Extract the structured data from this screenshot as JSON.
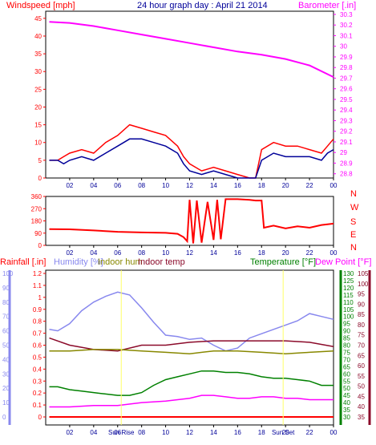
{
  "chart_data": [
    {
      "type": "line",
      "title": "24 hour graph day : April 21 2014",
      "left_label": "Windspeed [mph]",
      "right_label": "Barometer [.in]",
      "x_ticks": [
        "02",
        "04",
        "06",
        "08",
        "10",
        "12",
        "14",
        "16",
        "18",
        "20",
        "22",
        "00"
      ],
      "y_left_ticks": [
        "0",
        "5",
        "10",
        "15",
        "20",
        "25",
        "30",
        "35",
        "40",
        "45"
      ],
      "y_left_range": [
        0,
        47
      ],
      "y_right_ticks": [
        "28.8",
        "28.9",
        "29",
        "29.1",
        "29.2",
        "29.3",
        "29.4",
        "29.5",
        "29.6",
        "29.7",
        "29.8",
        "29.9",
        "30",
        "30.1",
        "30.2",
        "30.3"
      ],
      "y_right_range": [
        28.76,
        30.33
      ],
      "colors": {
        "gust": "#ff0000",
        "average": "#000099",
        "barometer": "#ff00ff"
      },
      "series": [
        {
          "name": "Barometer [.in]",
          "axis": "right",
          "color": "#ff00ff",
          "x": [
            0.3,
            2,
            4,
            6,
            8,
            10,
            12,
            14,
            16,
            18,
            20,
            22,
            24
          ],
          "y": [
            30.23,
            30.22,
            30.19,
            30.15,
            30.11,
            30.07,
            30.03,
            29.99,
            29.95,
            29.92,
            29.88,
            29.82,
            29.71
          ]
        },
        {
          "name": "Windspeed gust",
          "axis": "left",
          "color": "#ff0000",
          "x": [
            0.3,
            1,
            1.5,
            2,
            3,
            4,
            5,
            6,
            7,
            8,
            9,
            10,
            11,
            11.5,
            12,
            13,
            14,
            15,
            16,
            17,
            17.5,
            18,
            19,
            20,
            21,
            22,
            23,
            23.5,
            24
          ],
          "y": [
            5,
            5,
            6,
            7,
            8,
            7,
            10,
            12,
            15,
            14,
            13,
            12,
            9,
            6,
            4,
            2,
            3,
            2,
            1,
            0,
            0,
            8,
            10,
            9,
            9,
            8,
            7,
            9,
            11
          ]
        },
        {
          "name": "Windspeed average",
          "axis": "left",
          "color": "#000099",
          "x": [
            0.3,
            1,
            1.5,
            2,
            3,
            4,
            5,
            6,
            7,
            8,
            9,
            10,
            11,
            11.5,
            12,
            13,
            14,
            15,
            16,
            17,
            17.5,
            18,
            19,
            20,
            21,
            22,
            23,
            23.5,
            24
          ],
          "y": [
            5,
            5,
            4,
            5,
            6,
            5,
            7,
            9,
            11,
            11,
            10,
            9,
            7,
            4,
            2,
            1,
            2,
            1,
            0,
            0,
            0,
            5,
            7,
            6,
            6,
            6,
            5,
            7,
            8
          ]
        }
      ]
    },
    {
      "type": "line",
      "right_labels": [
        "N",
        "W",
        "S",
        "E",
        "N"
      ],
      "y_left_ticks": [
        "0",
        "90",
        "180",
        "270",
        "360"
      ],
      "y_range": [
        0,
        360
      ],
      "x_ticks": [
        "02",
        "04",
        "06",
        "08",
        "10",
        "12",
        "14",
        "16",
        "18",
        "20",
        "22",
        "00"
      ],
      "series": [
        {
          "name": "Wind direction",
          "color": "#ff0000",
          "x": [
            0.3,
            2,
            4,
            6,
            8,
            10,
            11,
            11.5,
            11.8,
            12,
            12.3,
            12.6,
            13,
            13.5,
            14,
            14.3,
            14.6,
            15,
            16,
            17,
            17.5,
            18,
            18.2,
            19,
            20,
            21,
            22,
            23,
            24
          ],
          "y": [
            120,
            118,
            110,
            100,
            95,
            92,
            85,
            60,
            30,
            335,
            15,
            330,
            20,
            320,
            40,
            335,
            45,
            340,
            340,
            335,
            330,
            330,
            130,
            145,
            125,
            140,
            130,
            150,
            160
          ]
        }
      ]
    },
    {
      "type": "line",
      "labels": [
        "Rainfall [.in]",
        "Humidity [%]",
        "Indoor hum",
        "Indoor temp",
        "Temperature [°F]",
        "Dew Point [°F]"
      ],
      "y_rain_ticks": [
        "0",
        "0.1",
        "0.2",
        "0.3",
        "0.4",
        "0.5",
        "0.6",
        "0.7",
        "0.8",
        "0.9",
        "1",
        "1.1",
        "1.2"
      ],
      "y_hum_ticks": [
        "0",
        "10",
        "20",
        "30",
        "40",
        "50",
        "60",
        "70",
        "80",
        "90",
        "100"
      ],
      "y_temp_ticks": [
        "30",
        "35",
        "40",
        "45",
        "50",
        "55",
        "60",
        "65",
        "70",
        "75",
        "80",
        "85",
        "90",
        "95",
        "100",
        "105",
        "110",
        "115",
        "120",
        "125",
        "130"
      ],
      "y_dew_ticks": [
        "35",
        "40",
        "45",
        "50",
        "55",
        "60",
        "65",
        "70",
        "75",
        "80",
        "85",
        "90",
        "95",
        "100",
        "105"
      ],
      "x_ticks": [
        "02",
        "04",
        "06",
        "08",
        "10",
        "12",
        "14",
        "16",
        "18",
        "20",
        "22",
        "00"
      ],
      "sun_labels": [
        "Sun Rise",
        "Sun Set"
      ],
      "series": [
        {
          "name": "Humidity [%]",
          "color": "#8888ee",
          "x": [
            0.3,
            1,
            2,
            3,
            4,
            5,
            6,
            7,
            8,
            9,
            10,
            11,
            12,
            13,
            14,
            15,
            16,
            17,
            18,
            19,
            20,
            21,
            22,
            23,
            24
          ],
          "y": [
            61,
            60,
            65,
            74,
            80,
            84,
            87,
            85,
            76,
            66,
            57,
            56,
            54,
            55,
            50,
            46,
            48,
            55,
            58,
            61,
            64,
            67,
            72,
            70,
            68
          ]
        },
        {
          "name": "Indoor temp",
          "color": "#8b0a2a",
          "x": [
            0.3,
            2,
            4,
            6,
            8,
            10,
            12,
            14,
            16,
            18,
            20,
            22,
            24
          ],
          "y": [
            85,
            80,
            77,
            76,
            80,
            80,
            82,
            83,
            83,
            83,
            83,
            82,
            79
          ]
        },
        {
          "name": "Indoor hum",
          "color": "#888800",
          "x": [
            0.3,
            2,
            4,
            6,
            8,
            10,
            12,
            14,
            16,
            18,
            20,
            22,
            24
          ],
          "y": [
            46,
            46,
            47,
            47,
            46,
            45,
            44,
            46,
            46,
            45,
            44,
            45,
            46
          ]
        },
        {
          "name": "Temperature [°F]",
          "color": "#008000",
          "x": [
            0.3,
            1,
            2,
            3,
            4,
            5,
            6,
            7,
            8,
            9,
            10,
            11,
            12,
            13,
            14,
            15,
            16,
            17,
            18,
            19,
            20,
            21,
            22,
            23,
            24
          ],
          "y": [
            51,
            51,
            49,
            48,
            47,
            46,
            45,
            45,
            47,
            52,
            56,
            58,
            60,
            62,
            62,
            61,
            61,
            60,
            58,
            57,
            57,
            56,
            55,
            52,
            52
          ]
        },
        {
          "name": "Dew Point [°F]",
          "color": "#ff00ff",
          "x": [
            0.3,
            2,
            4,
            6,
            8,
            10,
            11,
            12,
            13,
            14,
            15,
            16,
            17,
            18,
            19,
            20,
            21,
            22,
            23,
            24
          ],
          "y": [
            37,
            37,
            38,
            38,
            40,
            41,
            42,
            43,
            45,
            45,
            44,
            43,
            43,
            44,
            44,
            43,
            43,
            42,
            42,
            42
          ]
        },
        {
          "name": "Rainfall [.in]",
          "color": "#ff0000",
          "x": [
            0.3,
            24
          ],
          "y": [
            0,
            0
          ]
        }
      ],
      "sun_rise_hour": 6.3,
      "sun_set_hour": 19.8
    }
  ]
}
